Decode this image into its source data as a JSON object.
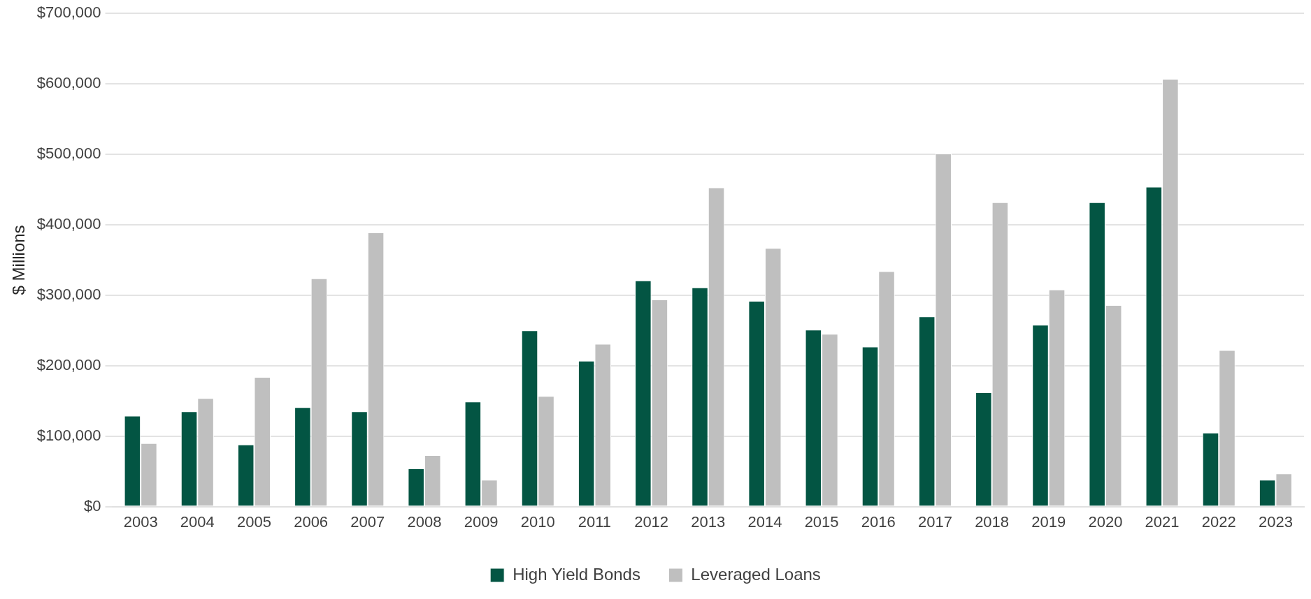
{
  "chart_data": {
    "type": "bar",
    "ylabel": "$ Millions",
    "categories": [
      "2003",
      "2004",
      "2005",
      "2006",
      "2007",
      "2008",
      "2009",
      "2010",
      "2011",
      "2012",
      "2013",
      "2014",
      "2015",
      "2016",
      "2017",
      "2018",
      "2019",
      "2020",
      "2021",
      "2022",
      "2023"
    ],
    "series": [
      {
        "name": "High Yield Bonds",
        "color": "#035543",
        "values": [
          129000,
          135000,
          88000,
          141000,
          135000,
          54000,
          149000,
          250000,
          207000,
          321000,
          311000,
          292000,
          251000,
          227000,
          270000,
          162000,
          258000,
          432000,
          454000,
          105000,
          38000
        ]
      },
      {
        "name": "Leveraged Loans",
        "color": "#bfbfbf",
        "values": [
          90000,
          154000,
          184000,
          324000,
          389000,
          73000,
          38000,
          157000,
          231000,
          294000,
          453000,
          367000,
          245000,
          334000,
          501000,
          432000,
          308000,
          286000,
          607000,
          222000,
          47000
        ]
      }
    ],
    "ylim": [
      0,
      700000
    ],
    "yticks": [
      {
        "value": 0,
        "label": "$0"
      },
      {
        "value": 100000,
        "label": "$100,000"
      },
      {
        "value": 200000,
        "label": "$200,000"
      },
      {
        "value": 300000,
        "label": "$300,000"
      },
      {
        "value": 400000,
        "label": "$400,000"
      },
      {
        "value": 500000,
        "label": "$500,000"
      },
      {
        "value": 600000,
        "label": "$600,000"
      },
      {
        "value": 700000,
        "label": "$700,000"
      }
    ],
    "grid": "y",
    "legend": "bottom"
  }
}
